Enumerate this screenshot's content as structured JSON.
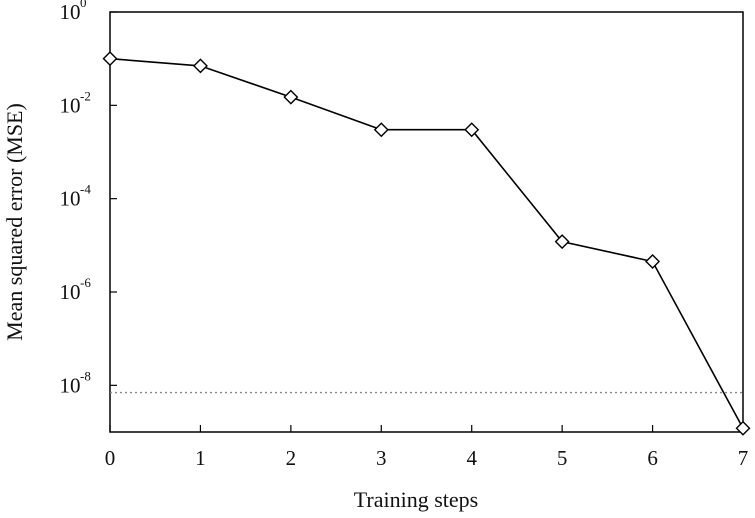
{
  "chart_data": {
    "type": "line",
    "xlabel": "Training steps",
    "ylabel": "Mean squared error (MSE)",
    "yscale": "log",
    "xlim": [
      0,
      7
    ],
    "ylim": [
      1e-09,
      1
    ],
    "x_ticks": [
      "0",
      "1",
      "2",
      "3",
      "4",
      "5",
      "6",
      "7"
    ],
    "y_ticks": [
      {
        "value": 1,
        "base": "10",
        "exp": "0"
      },
      {
        "value": 0.01,
        "base": "10",
        "exp": "-2"
      },
      {
        "value": 0.0001,
        "base": "10",
        "exp": "-4"
      },
      {
        "value": 1e-06,
        "base": "10",
        "exp": "-6"
      },
      {
        "value": 1e-08,
        "base": "10",
        "exp": "-8"
      }
    ],
    "series": [
      {
        "x": [
          0,
          1,
          2,
          3,
          4,
          5,
          6,
          7
        ],
        "values": [
          0.1,
          0.07,
          0.015,
          0.003,
          0.003,
          1.2e-05,
          4.5e-06,
          1.2e-09
        ],
        "marker": "diamond",
        "color": "#000000"
      }
    ],
    "reference_line": {
      "y": 7e-09,
      "style": "dotted",
      "color": "#888888"
    },
    "grid": false
  }
}
